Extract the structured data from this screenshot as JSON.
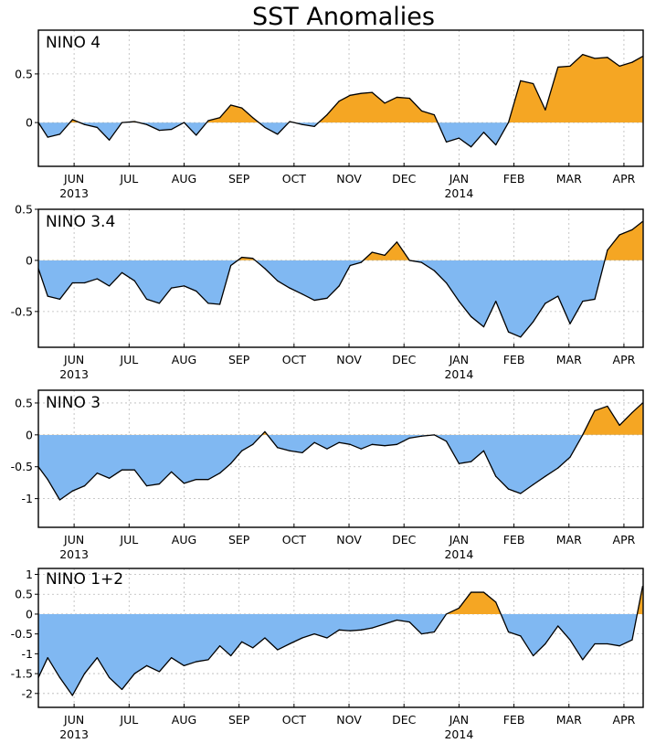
{
  "title": "SST Anomalies",
  "colors": {
    "positive": "#f5a623",
    "negative": "#80b8f2",
    "line": "#000000",
    "grid": "#b8b8b8"
  },
  "chart_data": [
    {
      "type": "area",
      "name": "NINO 4",
      "x_ticks": [
        "JUN",
        "JUL",
        "AUG",
        "SEP",
        "OCT",
        "NOV",
        "DEC",
        "JAN",
        "FEB",
        "MAR",
        "APR"
      ],
      "year_labels": [
        {
          "month": "JUN",
          "text": "2013"
        },
        {
          "month": "JAN",
          "text": "2014"
        }
      ],
      "y_ticks": [
        "0.5",
        "0"
      ],
      "ylim": [
        -0.45,
        0.95
      ],
      "grid": true,
      "x": [
        0,
        0.17,
        0.39,
        0.62,
        0.84,
        1.07,
        1.29,
        1.52,
        1.75,
        1.97,
        2.2,
        2.42,
        2.65,
        2.87,
        3.09,
        3.3,
        3.5,
        3.7,
        3.9,
        4.12,
        4.35,
        4.57,
        4.8,
        5.02,
        5.25,
        5.47,
        5.67,
        5.87,
        6.07,
        6.3,
        6.52,
        6.75,
        6.97,
        7.2,
        7.42,
        7.65,
        7.87,
        8.1,
        8.32,
        8.55,
        8.77,
        9.0,
        9.22,
        9.45,
        9.67,
        9.9,
        10.12,
        10.35,
        10.57,
        10.8,
        10.99
      ],
      "y": [
        0.0,
        -0.15,
        -0.12,
        0.03,
        -0.02,
        -0.05,
        -0.18,
        0.0,
        0.01,
        -0.02,
        -0.08,
        -0.07,
        0.0,
        -0.13,
        0.02,
        0.05,
        0.18,
        0.15,
        0.05,
        -0.05,
        -0.12,
        0.01,
        -0.02,
        -0.04,
        0.08,
        0.22,
        0.28,
        0.3,
        0.31,
        0.2,
        0.26,
        0.25,
        0.12,
        0.08,
        -0.2,
        -0.16,
        -0.25,
        -0.1,
        -0.23,
        0.0,
        0.43,
        0.4,
        0.13,
        0.57,
        0.58,
        0.7,
        0.66,
        0.67,
        0.58,
        0.62,
        0.68
      ]
    },
    {
      "type": "area",
      "name": "NINO 3.4",
      "x_ticks": [
        "JUN",
        "JUL",
        "AUG",
        "SEP",
        "OCT",
        "NOV",
        "DEC",
        "JAN",
        "FEB",
        "MAR",
        "APR"
      ],
      "year_labels": [
        {
          "month": "JUN",
          "text": "2013"
        },
        {
          "month": "JAN",
          "text": "2014"
        }
      ],
      "y_ticks": [
        "0.5",
        "0",
        "-0.5"
      ],
      "ylim": [
        -0.85,
        0.5
      ],
      "grid": true,
      "x": [
        0,
        0.17,
        0.39,
        0.62,
        0.84,
        1.07,
        1.29,
        1.52,
        1.75,
        1.97,
        2.2,
        2.42,
        2.65,
        2.87,
        3.09,
        3.3,
        3.5,
        3.7,
        3.9,
        4.12,
        4.35,
        4.57,
        4.8,
        5.02,
        5.25,
        5.47,
        5.67,
        5.87,
        6.07,
        6.3,
        6.52,
        6.75,
        6.97,
        7.2,
        7.42,
        7.65,
        7.87,
        8.1,
        8.32,
        8.55,
        8.77,
        9.0,
        9.22,
        9.45,
        9.67,
        9.9,
        10.12,
        10.35,
        10.57,
        10.8,
        10.99
      ],
      "y": [
        -0.08,
        -0.35,
        -0.38,
        -0.22,
        -0.22,
        -0.18,
        -0.25,
        -0.12,
        -0.2,
        -0.38,
        -0.42,
        -0.27,
        -0.25,
        -0.3,
        -0.42,
        -0.43,
        -0.05,
        0.03,
        0.02,
        -0.08,
        -0.2,
        -0.27,
        -0.33,
        -0.39,
        -0.37,
        -0.25,
        -0.05,
        -0.02,
        0.08,
        0.05,
        0.18,
        0.0,
        -0.02,
        -0.1,
        -0.22,
        -0.4,
        -0.55,
        -0.65,
        -0.4,
        -0.7,
        -0.75,
        -0.6,
        -0.42,
        -0.35,
        -0.62,
        -0.4,
        -0.38,
        0.1,
        0.25,
        0.3,
        0.38
      ]
    },
    {
      "type": "area",
      "name": "NINO 3",
      "x_ticks": [
        "JUN",
        "JUL",
        "AUG",
        "SEP",
        "OCT",
        "NOV",
        "DEC",
        "JAN",
        "FEB",
        "MAR",
        "APR"
      ],
      "year_labels": [
        {
          "month": "JUN",
          "text": "2013"
        },
        {
          "month": "JAN",
          "text": "2014"
        }
      ],
      "y_ticks": [
        "0.5",
        "0",
        "-0.5",
        "-1"
      ],
      "ylim": [
        -1.45,
        0.7
      ],
      "grid": true,
      "x": [
        0,
        0.17,
        0.39,
        0.62,
        0.84,
        1.07,
        1.29,
        1.52,
        1.75,
        1.97,
        2.2,
        2.42,
        2.65,
        2.87,
        3.09,
        3.3,
        3.5,
        3.7,
        3.9,
        4.12,
        4.35,
        4.57,
        4.8,
        5.02,
        5.25,
        5.47,
        5.67,
        5.87,
        6.07,
        6.3,
        6.52,
        6.75,
        6.97,
        7.2,
        7.42,
        7.65,
        7.87,
        8.1,
        8.32,
        8.55,
        8.77,
        9.0,
        9.22,
        9.45,
        9.67,
        9.9,
        10.12,
        10.35,
        10.57,
        10.8,
        10.99
      ],
      "y": [
        -0.5,
        -0.7,
        -1.02,
        -0.88,
        -0.8,
        -0.6,
        -0.68,
        -0.55,
        -0.55,
        -0.8,
        -0.77,
        -0.58,
        -0.76,
        -0.7,
        -0.7,
        -0.6,
        -0.45,
        -0.25,
        -0.15,
        0.05,
        -0.2,
        -0.25,
        -0.28,
        -0.12,
        -0.22,
        -0.12,
        -0.15,
        -0.22,
        -0.15,
        -0.17,
        -0.15,
        -0.05,
        -0.02,
        0.0,
        -0.1,
        -0.45,
        -0.42,
        -0.25,
        -0.65,
        -0.85,
        -0.92,
        -0.78,
        -0.65,
        -0.52,
        -0.35,
        0.0,
        0.38,
        0.45,
        0.15,
        0.35,
        0.5
      ]
    },
    {
      "type": "area",
      "name": "NINO 1+2",
      "x_ticks": [
        "JUN",
        "JUL",
        "AUG",
        "SEP",
        "OCT",
        "NOV",
        "DEC",
        "JAN",
        "FEB",
        "MAR",
        "APR"
      ],
      "year_labels": [
        {
          "month": "JUN",
          "text": "2013"
        },
        {
          "month": "JAN",
          "text": "2014"
        }
      ],
      "y_ticks": [
        "1",
        "0.5",
        "0",
        "-0.5",
        "-1",
        "-1.5",
        "-2"
      ],
      "ylim": [
        -2.35,
        1.15
      ],
      "grid": true,
      "x": [
        0,
        0.17,
        0.39,
        0.62,
        0.84,
        1.07,
        1.29,
        1.52,
        1.75,
        1.97,
        2.2,
        2.42,
        2.65,
        2.87,
        3.09,
        3.3,
        3.5,
        3.7,
        3.9,
        4.12,
        4.35,
        4.57,
        4.8,
        5.02,
        5.25,
        5.47,
        5.67,
        5.87,
        6.07,
        6.3,
        6.52,
        6.75,
        6.97,
        7.2,
        7.42,
        7.65,
        7.87,
        8.1,
        8.32,
        8.55,
        8.77,
        9.0,
        9.22,
        9.45,
        9.67,
        9.9,
        10.12,
        10.35,
        10.57,
        10.8,
        10.99
      ],
      "y": [
        -1.6,
        -1.1,
        -1.6,
        -2.05,
        -1.5,
        -1.1,
        -1.6,
        -1.9,
        -1.5,
        -1.3,
        -1.45,
        -1.1,
        -1.3,
        -1.2,
        -1.15,
        -0.8,
        -1.05,
        -0.7,
        -0.85,
        -0.6,
        -0.9,
        -0.75,
        -0.6,
        -0.5,
        -0.6,
        -0.4,
        -0.42,
        -0.4,
        -0.35,
        -0.25,
        -0.15,
        -0.2,
        -0.5,
        -0.45,
        0.0,
        0.15,
        0.55,
        0.55,
        0.3,
        -0.45,
        -0.55,
        -1.05,
        -0.75,
        -0.3,
        -0.65,
        -1.15,
        -0.75,
        -0.75,
        -0.8,
        -0.65,
        0.7
      ]
    }
  ]
}
